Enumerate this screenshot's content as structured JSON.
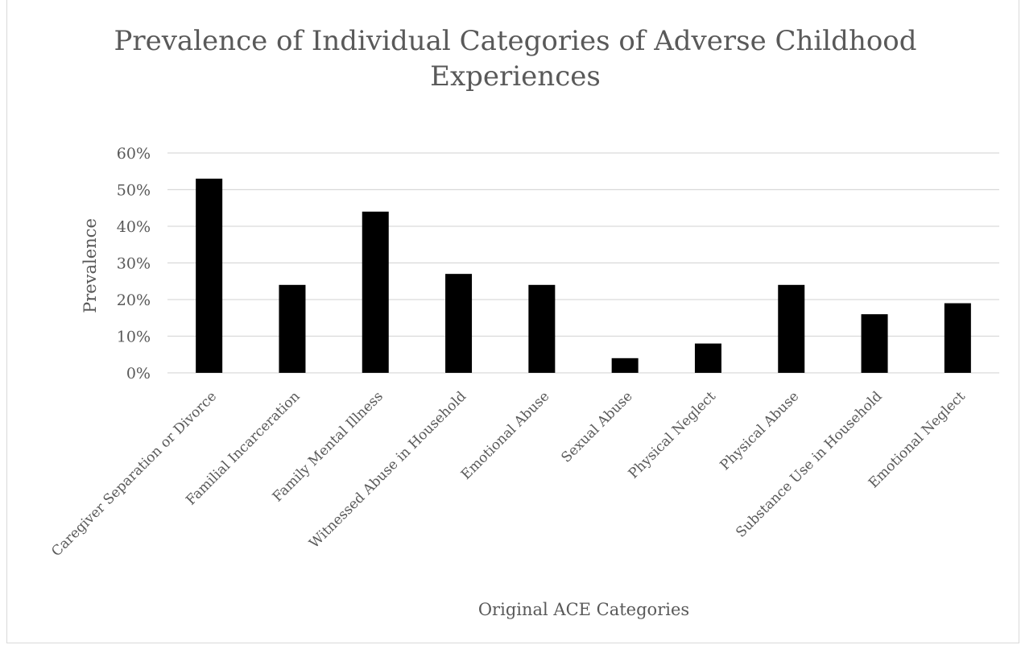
{
  "chart_data": {
    "type": "bar",
    "title": "Prevalence of Individual Categories of Adverse Childhood Experiences",
    "title_lines": [
      "Prevalence of Individual Categories of Adverse Childhood",
      "Experiences"
    ],
    "xlabel": "Original ACE Categories",
    "ylabel": "Prevalence",
    "categories": [
      "Caregiver Separation or Divorce",
      "Familial Incarceration",
      "Family Mental Illness",
      "Witnessed Abuse in Household",
      "Emotional Abuse",
      "Sexual Abuse",
      "Physical Neglect",
      "Physical Abuse",
      "Substance Use in Household",
      "Emotional Neglect"
    ],
    "values": [
      53,
      24,
      44,
      27,
      24,
      4,
      8,
      24,
      16,
      19
    ],
    "ylim": [
      0,
      60
    ],
    "yticks": [
      "0%",
      "10%",
      "20%",
      "30%",
      "40%",
      "50%",
      "60%"
    ],
    "grid": true,
    "bar_color": "#000000",
    "grid_color": "#d9d9d9",
    "text_color": "#595959"
  }
}
